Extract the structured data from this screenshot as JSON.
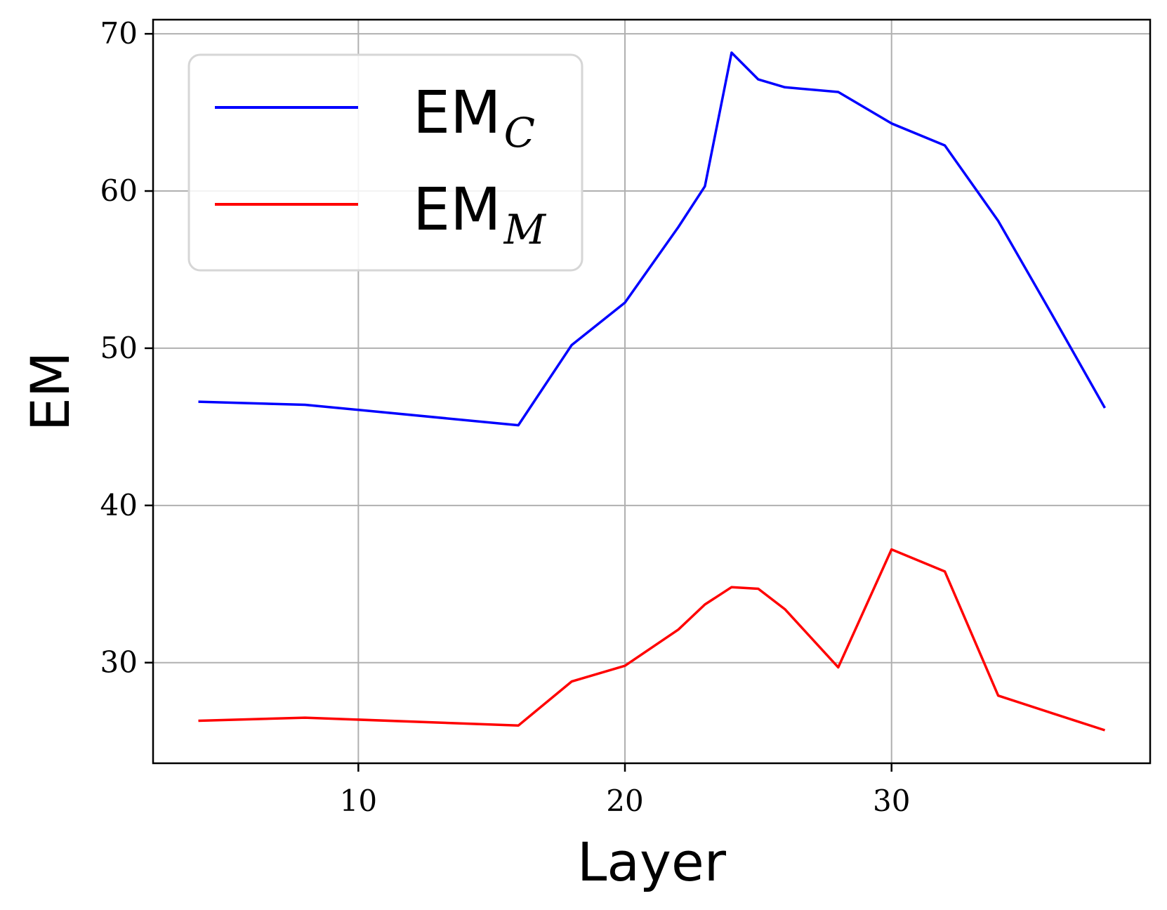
{
  "chart_data": {
    "type": "line",
    "title": "",
    "xlabel": "Layer",
    "ylabel": "EM",
    "xlim": [
      2.3,
      39.7
    ],
    "ylim": [
      23.6,
      70.9
    ],
    "xticks": [
      10,
      20,
      30
    ],
    "yticks": [
      30,
      40,
      50,
      60,
      70
    ],
    "grid": true,
    "legend": {
      "placement": "top-left"
    },
    "series": [
      {
        "name": "EM",
        "subscript": "C",
        "color": "#0000ff",
        "x": [
          4,
          8,
          16,
          18,
          20,
          22,
          23,
          24,
          25,
          26,
          28,
          30,
          32,
          34,
          36,
          38
        ],
        "y": [
          46.6,
          46.4,
          45.1,
          50.2,
          52.9,
          57.7,
          60.3,
          68.8,
          67.1,
          66.6,
          66.3,
          64.3,
          62.9,
          58.1,
          52.2,
          46.2
        ]
      },
      {
        "name": "EM",
        "subscript": "M",
        "color": "#ff0000",
        "x": [
          4,
          8,
          16,
          18,
          20,
          22,
          23,
          24,
          25,
          26,
          28,
          30,
          32,
          34,
          36,
          38
        ],
        "y": [
          26.3,
          26.5,
          26.0,
          28.8,
          29.8,
          32.1,
          33.7,
          34.8,
          34.7,
          33.4,
          29.7,
          37.2,
          35.8,
          27.9,
          26.8,
          25.7
        ]
      }
    ]
  }
}
